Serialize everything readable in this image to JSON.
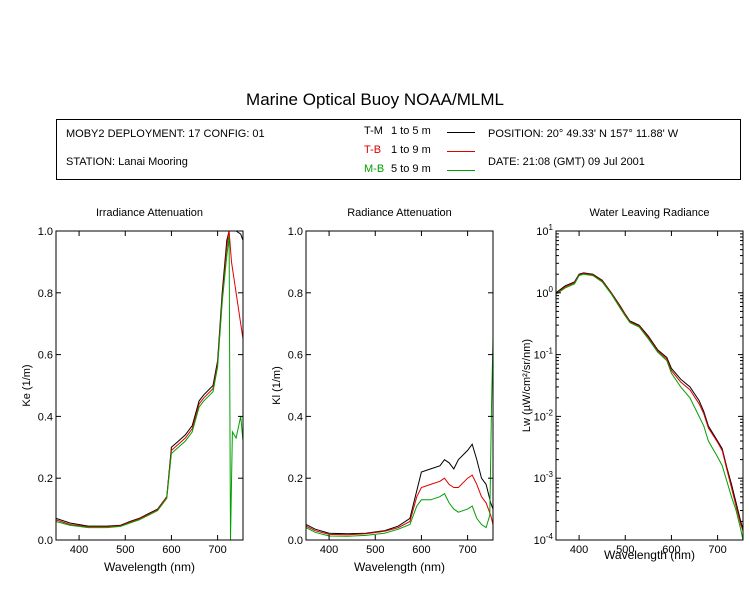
{
  "title": "Marine Optical Buoy NOAA/MLML",
  "info": {
    "deployment": "MOBY2 DEPLOYMENT: 17 CONFIG: 01",
    "station": "STATION: Lanai Mooring",
    "position": "POSITION: 20° 49.33' N   157° 11.88' W",
    "date": "DATE: 21:08 (GMT) 09 Jul 2001",
    "legend": [
      {
        "code": "T-M",
        "range": "1 to 5  m",
        "color": "#000000"
      },
      {
        "code": "T-B",
        "range": "1 to 9  m",
        "color": "#dd0000"
      },
      {
        "code": "M-B",
        "range": "5 to 9  m",
        "color": "#00a000"
      }
    ]
  },
  "chart_data": [
    {
      "type": "line",
      "title": "Irradiance Attenuation",
      "xlabel": "Wavelength (nm)",
      "ylabel": "Ke  (1/m)",
      "xlim": [
        350,
        755
      ],
      "ylim": [
        0,
        1
      ],
      "xticks": [
        400,
        500,
        600,
        700
      ],
      "yticks": [
        0.0,
        0.2,
        0.4,
        0.6,
        0.8,
        1.0
      ],
      "ytick_labels": [
        "0.0",
        "0.2",
        "0.4",
        "0.6",
        "0.8",
        "1.0"
      ],
      "series": [
        {
          "name": "T-M",
          "color": "#000000",
          "x": [
            350,
            380,
            420,
            460,
            490,
            510,
            530,
            550,
            570,
            590,
            600,
            615,
            630,
            645,
            660,
            670,
            690,
            700,
            710,
            720,
            725,
            730,
            740,
            750,
            755
          ],
          "y": [
            0.07,
            0.055,
            0.045,
            0.045,
            0.048,
            0.06,
            0.07,
            0.085,
            0.1,
            0.14,
            0.3,
            0.32,
            0.34,
            0.37,
            0.45,
            0.47,
            0.5,
            0.58,
            0.8,
            0.97,
            1.0,
            1.0,
            1.0,
            0.99,
            0.97
          ]
        },
        {
          "name": "T-B",
          "color": "#dd0000",
          "x": [
            350,
            380,
            420,
            460,
            490,
            510,
            530,
            550,
            570,
            590,
            600,
            615,
            630,
            645,
            660,
            670,
            690,
            700,
            710,
            720,
            725,
            730,
            740,
            750,
            755
          ],
          "y": [
            0.065,
            0.05,
            0.043,
            0.043,
            0.046,
            0.058,
            0.068,
            0.083,
            0.098,
            0.14,
            0.29,
            0.31,
            0.33,
            0.36,
            0.44,
            0.46,
            0.49,
            0.57,
            0.78,
            0.95,
            1.0,
            0.9,
            0.8,
            0.7,
            0.65
          ]
        },
        {
          "name": "M-B",
          "color": "#00a000",
          "x": [
            350,
            380,
            420,
            460,
            490,
            510,
            530,
            550,
            570,
            590,
            600,
            615,
            630,
            645,
            660,
            670,
            690,
            700,
            710,
            720,
            725,
            728,
            732,
            740,
            750,
            755
          ],
          "y": [
            0.06,
            0.048,
            0.04,
            0.04,
            0.044,
            0.055,
            0.065,
            0.08,
            0.095,
            0.135,
            0.28,
            0.3,
            0.32,
            0.35,
            0.43,
            0.45,
            0.48,
            0.56,
            0.77,
            0.92,
            0.98,
            0.0,
            0.35,
            0.33,
            0.4,
            0.32
          ]
        }
      ]
    },
    {
      "type": "line",
      "title": "Radiance Attenuation",
      "xlabel": "Wavelength (nm)",
      "ylabel": "Kl  (1/m)",
      "xlim": [
        350,
        755
      ],
      "ylim": [
        0,
        1
      ],
      "xticks": [
        400,
        500,
        600,
        700
      ],
      "yticks": [
        0.0,
        0.2,
        0.4,
        0.6,
        0.8,
        1.0
      ],
      "ytick_labels": [
        "0.0",
        "0.2",
        "0.4",
        "0.6",
        "0.8",
        "1.0"
      ],
      "series": [
        {
          "name": "T-M",
          "color": "#000000",
          "x": [
            350,
            370,
            400,
            440,
            480,
            520,
            550,
            575,
            590,
            600,
            620,
            640,
            650,
            660,
            670,
            680,
            700,
            710,
            720,
            730,
            740,
            750,
            755
          ],
          "y": [
            0.05,
            0.035,
            0.022,
            0.02,
            0.022,
            0.03,
            0.045,
            0.07,
            0.16,
            0.22,
            0.23,
            0.24,
            0.26,
            0.25,
            0.23,
            0.26,
            0.29,
            0.31,
            0.26,
            0.2,
            0.18,
            0.12,
            0.1
          ]
        },
        {
          "name": "T-B",
          "color": "#dd0000",
          "x": [
            350,
            370,
            400,
            440,
            480,
            520,
            550,
            575,
            590,
            600,
            620,
            640,
            650,
            660,
            670,
            680,
            700,
            710,
            720,
            730,
            740,
            750,
            755
          ],
          "y": [
            0.045,
            0.03,
            0.018,
            0.017,
            0.02,
            0.028,
            0.04,
            0.06,
            0.14,
            0.17,
            0.18,
            0.19,
            0.2,
            0.18,
            0.17,
            0.17,
            0.2,
            0.21,
            0.18,
            0.14,
            0.12,
            0.08,
            0.05
          ]
        },
        {
          "name": "M-B",
          "color": "#00a000",
          "x": [
            350,
            370,
            400,
            440,
            480,
            520,
            550,
            575,
            590,
            600,
            620,
            640,
            650,
            660,
            670,
            680,
            700,
            710,
            720,
            730,
            740,
            748,
            752,
            755
          ],
          "y": [
            0.04,
            0.025,
            0.013,
            0.012,
            0.015,
            0.022,
            0.035,
            0.05,
            0.11,
            0.13,
            0.13,
            0.14,
            0.15,
            0.12,
            0.1,
            0.09,
            0.1,
            0.11,
            0.07,
            0.05,
            0.04,
            0.08,
            0.45,
            0.65
          ]
        }
      ]
    },
    {
      "type": "line",
      "title": "Water Leaving Radiance",
      "xlabel": "Wavelength (nm)",
      "ylabel": "Lw  (µW/cm²/sr/nm)",
      "log_y": true,
      "xlim": [
        350,
        755
      ],
      "ylim": [
        0.0001,
        10
      ],
      "xticks": [
        400,
        500,
        600,
        700
      ],
      "yticks": [
        0.0001,
        0.001,
        0.01,
        0.1,
        1,
        10
      ],
      "ytick_labels": [
        {
          "base": "10",
          "exp": "-4"
        },
        {
          "base": "10",
          "exp": "-3"
        },
        {
          "base": "10",
          "exp": "-2"
        },
        {
          "base": "10",
          "exp": "-1"
        },
        {
          "base": "10",
          "exp": "0"
        },
        {
          "base": "10",
          "exp": "1"
        }
      ],
      "series": [
        {
          "name": "T-M",
          "color": "#000000",
          "x": [
            350,
            370,
            390,
            400,
            410,
            430,
            450,
            470,
            490,
            500,
            510,
            530,
            550,
            570,
            590,
            600,
            620,
            640,
            660,
            670,
            680,
            700,
            710,
            720,
            730,
            740,
            750,
            755
          ],
          "y": [
            1.0,
            1.3,
            1.5,
            2.0,
            2.1,
            2.0,
            1.6,
            1.0,
            0.6,
            0.45,
            0.35,
            0.3,
            0.2,
            0.12,
            0.09,
            0.06,
            0.04,
            0.03,
            0.018,
            0.012,
            0.007,
            0.004,
            0.003,
            0.0015,
            0.0008,
            0.0004,
            0.0002,
            0.00015
          ]
        },
        {
          "name": "T-B",
          "color": "#dd0000",
          "x": [
            350,
            370,
            390,
            400,
            410,
            430,
            450,
            470,
            490,
            500,
            510,
            530,
            550,
            570,
            590,
            600,
            620,
            640,
            660,
            670,
            680,
            700,
            710,
            720,
            730,
            740,
            750,
            755
          ],
          "y": [
            0.97,
            1.25,
            1.45,
            1.95,
            2.05,
            1.95,
            1.55,
            0.98,
            0.58,
            0.44,
            0.34,
            0.29,
            0.19,
            0.115,
            0.085,
            0.055,
            0.036,
            0.027,
            0.016,
            0.011,
            0.0065,
            0.0038,
            0.0028,
            0.0014,
            0.0007,
            0.00035,
            0.00018,
            0.00014
          ]
        },
        {
          "name": "M-B",
          "color": "#00a000",
          "x": [
            350,
            370,
            390,
            400,
            410,
            430,
            450,
            470,
            490,
            500,
            510,
            530,
            550,
            570,
            590,
            600,
            620,
            640,
            660,
            670,
            680,
            700,
            710,
            720,
            730,
            740,
            750,
            755
          ],
          "y": [
            0.95,
            1.2,
            1.4,
            1.9,
            2.0,
            1.9,
            1.5,
            0.95,
            0.55,
            0.42,
            0.33,
            0.28,
            0.18,
            0.11,
            0.08,
            0.05,
            0.03,
            0.02,
            0.01,
            0.007,
            0.004,
            0.0022,
            0.0016,
            0.0009,
            0.0005,
            0.0003,
            0.00015,
            0.0001
          ]
        }
      ]
    }
  ]
}
